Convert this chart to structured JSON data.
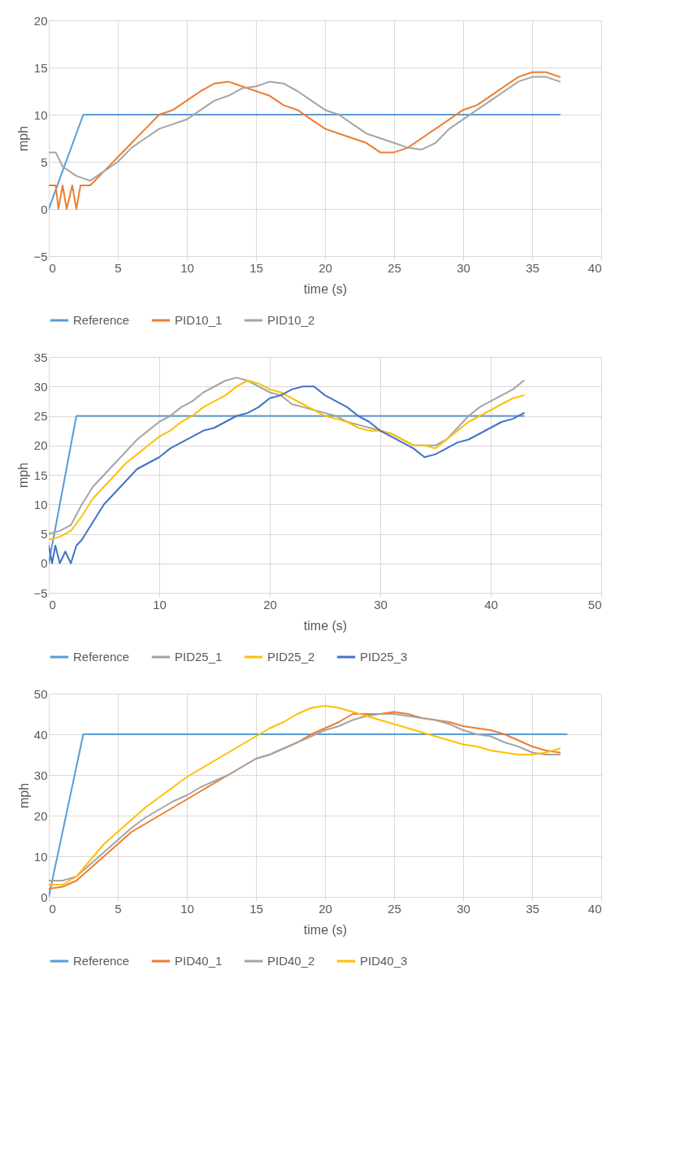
{
  "chart_data": [
    {
      "type": "line",
      "xlabel": "time (s)",
      "ylabel": "mph",
      "xlim": [
        0,
        40
      ],
      "xticks": [
        0,
        5,
        10,
        15,
        20,
        25,
        30,
        35,
        40
      ],
      "ylim": [
        -5,
        20
      ],
      "yticks": [
        -5,
        0,
        5,
        10,
        15,
        20
      ],
      "grid": true,
      "legend": "bottom",
      "series": [
        {
          "name": "Reference",
          "color": "#5b9bd5",
          "x": [
            0,
            2.5,
            37
          ],
          "values": [
            0,
            10,
            10
          ]
        },
        {
          "name": "PID10_1",
          "color": "#ed7d31",
          "x": [
            0,
            0.5,
            0.7,
            1,
            1.3,
            1.7,
            2,
            2.3,
            3,
            4,
            5,
            6,
            7,
            8,
            9,
            10,
            11,
            12,
            13,
            14,
            15,
            16,
            17,
            18,
            19,
            20,
            21,
            22,
            23,
            24,
            25,
            26,
            27,
            28,
            29,
            30,
            31,
            32,
            33,
            34,
            35,
            36,
            37
          ],
          "values": [
            2.5,
            2.5,
            0,
            2.5,
            0,
            2.5,
            0,
            2.5,
            2.5,
            4,
            5.5,
            7,
            8.5,
            10,
            10.5,
            11.5,
            12.5,
            13.3,
            13.5,
            13,
            12.5,
            12,
            11,
            10.5,
            9.5,
            8.5,
            8,
            7.5,
            7,
            6,
            6,
            6.5,
            7.5,
            8.5,
            9.5,
            10.5,
            11,
            12,
            13,
            14,
            14.5,
            14.5,
            14
          ]
        },
        {
          "name": "PID10_2",
          "color": "#a5a5a5",
          "x": [
            0,
            0.5,
            1,
            2,
            3,
            4,
            5,
            6,
            7,
            8,
            9,
            10,
            11,
            12,
            13,
            14,
            15,
            16,
            17,
            18,
            19,
            20,
            21,
            22,
            23,
            24,
            25,
            26,
            27,
            28,
            29,
            30,
            31,
            32,
            33,
            34,
            35,
            36,
            37
          ],
          "values": [
            6,
            6,
            4.5,
            3.5,
            3,
            4,
            5,
            6.5,
            7.5,
            8.5,
            9,
            9.5,
            10.5,
            11.5,
            12,
            12.8,
            13,
            13.5,
            13.3,
            12.5,
            11.5,
            10.5,
            10,
            9,
            8,
            7.5,
            7,
            6.5,
            6.3,
            7,
            8.5,
            9.5,
            10.5,
            11.5,
            12.5,
            13.5,
            14,
            14,
            13.5
          ]
        }
      ]
    },
    {
      "type": "line",
      "xlabel": "time (s)",
      "ylabel": "mph",
      "xlim": [
        0,
        50
      ],
      "xticks": [
        0,
        10,
        20,
        30,
        40,
        50
      ],
      "ylim": [
        -5,
        35
      ],
      "yticks": [
        -5,
        0,
        5,
        10,
        15,
        20,
        25,
        30,
        35
      ],
      "grid": true,
      "legend": "bottom",
      "series": [
        {
          "name": "Reference",
          "color": "#5b9bd5",
          "x": [
            0,
            2.5,
            43
          ],
          "values": [
            0,
            25,
            25
          ]
        },
        {
          "name": "PID25_1",
          "color": "#a5a5a5",
          "x": [
            0,
            1,
            2,
            3,
            4,
            5,
            6,
            7,
            8,
            9,
            10,
            11,
            12,
            13,
            14,
            15,
            16,
            17,
            18,
            19,
            20,
            21,
            22,
            23,
            24,
            25,
            26,
            27,
            28,
            29,
            30,
            31,
            32,
            33,
            34,
            35,
            36,
            37,
            38,
            39,
            40,
            41,
            42,
            43
          ],
          "values": [
            5,
            5.5,
            6.5,
            10,
            13,
            15,
            17,
            19,
            21,
            22.5,
            24,
            25,
            26.5,
            27.5,
            29,
            30,
            31,
            31.5,
            31,
            30,
            29,
            28.5,
            27,
            26.5,
            26,
            25.5,
            25,
            24,
            23.5,
            23,
            22.5,
            22,
            21,
            20,
            20,
            20,
            21,
            23,
            25,
            26.5,
            27.5,
            28.5,
            29.5,
            31
          ]
        },
        {
          "name": "PID25_2",
          "color": "#ffc000",
          "x": [
            0,
            1,
            2,
            3,
            4,
            5,
            6,
            7,
            8,
            9,
            10,
            11,
            12,
            13,
            14,
            15,
            16,
            17,
            18,
            19,
            20,
            21,
            22,
            23,
            24,
            25,
            26,
            27,
            28,
            29,
            30,
            31,
            32,
            33,
            34,
            35,
            36,
            37,
            38,
            39,
            40,
            41,
            42,
            43
          ],
          "values": [
            4,
            4.5,
            5.5,
            8,
            11,
            13,
            15,
            17,
            18.5,
            20,
            21.5,
            22.5,
            24,
            25,
            26.5,
            27.5,
            28.5,
            30,
            31,
            30.5,
            29.5,
            29,
            28,
            27,
            26,
            25,
            24.5,
            24,
            23,
            22.5,
            22.5,
            22,
            21,
            20,
            20,
            19.5,
            21,
            22.5,
            24,
            25,
            26,
            27,
            28,
            28.5
          ]
        },
        {
          "name": "PID25_3",
          "color": "#4472c4",
          "x": [
            0,
            0.3,
            0.6,
            1,
            1.5,
            2,
            2.5,
            3,
            4,
            5,
            6,
            7,
            8,
            9,
            10,
            11,
            12,
            13,
            14,
            15,
            16,
            17,
            18,
            19,
            20,
            21,
            22,
            23,
            24,
            25,
            26,
            27,
            28,
            29,
            30,
            31,
            32,
            33,
            34,
            35,
            36,
            37,
            38,
            39,
            40,
            41,
            42,
            43
          ],
          "values": [
            3,
            0,
            3,
            0,
            2,
            0,
            3,
            4,
            7,
            10,
            12,
            14,
            16,
            17,
            18,
            19.5,
            20.5,
            21.5,
            22.5,
            23,
            24,
            25,
            25.5,
            26.5,
            28,
            28.5,
            29.5,
            30,
            30,
            28.5,
            27.5,
            26.5,
            25,
            24,
            22.5,
            21.5,
            20.5,
            19.5,
            18,
            18.5,
            19.5,
            20.5,
            21,
            22,
            23,
            24,
            24.5,
            25.5
          ]
        }
      ]
    },
    {
      "type": "line",
      "xlabel": "time (s)",
      "ylabel": "mph",
      "xlim": [
        0,
        40
      ],
      "xticks": [
        0,
        5,
        10,
        15,
        20,
        25,
        30,
        35,
        40
      ],
      "ylim": [
        0,
        50
      ],
      "yticks": [
        0,
        10,
        20,
        30,
        40,
        50
      ],
      "grid": true,
      "legend": "bottom",
      "series": [
        {
          "name": "Reference",
          "color": "#5b9bd5",
          "x": [
            0,
            2.5,
            37.5
          ],
          "values": [
            0,
            40,
            40
          ]
        },
        {
          "name": "PID40_1",
          "color": "#ed7d31",
          "x": [
            0,
            1,
            2,
            3,
            4,
            5,
            6,
            7,
            8,
            9,
            10,
            11,
            12,
            13,
            14,
            15,
            16,
            17,
            18,
            19,
            20,
            21,
            22,
            23,
            24,
            25,
            26,
            27,
            28,
            29,
            30,
            31,
            32,
            33,
            34,
            35,
            36,
            37
          ],
          "values": [
            2,
            2.5,
            4,
            7,
            10,
            13,
            16,
            18,
            20,
            22,
            24,
            26,
            28,
            30,
            32,
            34,
            35,
            36.5,
            38,
            40,
            41.5,
            43,
            45,
            45,
            45,
            45.5,
            45,
            44,
            43.5,
            43,
            42,
            41.5,
            41,
            40,
            38.5,
            37,
            36,
            35.5
          ]
        },
        {
          "name": "PID40_2",
          "color": "#a5a5a5",
          "x": [
            0,
            1,
            2,
            3,
            4,
            5,
            6,
            7,
            8,
            9,
            10,
            11,
            12,
            13,
            14,
            15,
            16,
            17,
            18,
            19,
            20,
            21,
            22,
            23,
            24,
            25,
            26,
            27,
            28,
            29,
            30,
            31,
            32,
            33,
            34,
            35,
            36,
            37
          ],
          "values": [
            4,
            4,
            5,
            8,
            11,
            14,
            17,
            19.5,
            21.5,
            23.5,
            25,
            27,
            28.5,
            30,
            32,
            34,
            35,
            36.5,
            38,
            39.5,
            41,
            42,
            43.5,
            44.5,
            45,
            45,
            44.5,
            44,
            43.5,
            42.5,
            41,
            40,
            39.5,
            38,
            37,
            35.5,
            35,
            35
          ]
        },
        {
          "name": "PID40_3",
          "color": "#ffc000",
          "x": [
            0,
            1,
            2,
            3,
            4,
            5,
            6,
            7,
            8,
            9,
            10,
            11,
            12,
            13,
            14,
            15,
            16,
            17,
            18,
            19,
            20,
            21,
            22,
            23,
            24,
            25,
            26,
            27,
            28,
            29,
            30,
            31,
            32,
            33,
            34,
            35,
            36,
            37
          ],
          "values": [
            3,
            3,
            5,
            9,
            13,
            16,
            19,
            22,
            24.5,
            27,
            29.5,
            31.5,
            33.5,
            35.5,
            37.5,
            39.5,
            41.5,
            43,
            45,
            46.5,
            47,
            46.5,
            45.5,
            44.5,
            43.5,
            42.5,
            41.5,
            40.5,
            39.5,
            38.5,
            37.5,
            37,
            36,
            35.5,
            35,
            35,
            35.5,
            36.5
          ]
        }
      ]
    }
  ]
}
